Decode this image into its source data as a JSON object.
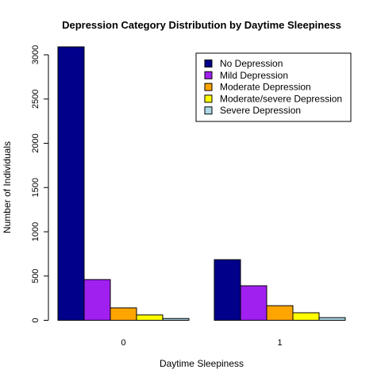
{
  "chart_data": {
    "type": "bar",
    "title": "Depression Category Distribution by Daytime Sleepiness",
    "xlabel": "Daytime Sleepiness",
    "ylabel": "Number of Individuals",
    "categories": [
      "0",
      "1"
    ],
    "ylim": [
      0,
      3090
    ],
    "yticks": [
      0,
      500,
      1000,
      1500,
      2000,
      2500,
      3000
    ],
    "grid": false,
    "legend_position": "top-right",
    "series": [
      {
        "name": "No Depression",
        "color": "#00008B",
        "values": [
          3090,
          685
        ]
      },
      {
        "name": "Mild Depression",
        "color": "#A020F0",
        "values": [
          460,
          390
        ]
      },
      {
        "name": "Moderate Depression",
        "color": "#FFA500",
        "values": [
          140,
          165
        ]
      },
      {
        "name": "Moderate/severe Depression",
        "color": "#FFFF00",
        "values": [
          60,
          85
        ]
      },
      {
        "name": "Severe Depression",
        "color": "#ADD8E6",
        "values": [
          20,
          30
        ]
      }
    ]
  }
}
